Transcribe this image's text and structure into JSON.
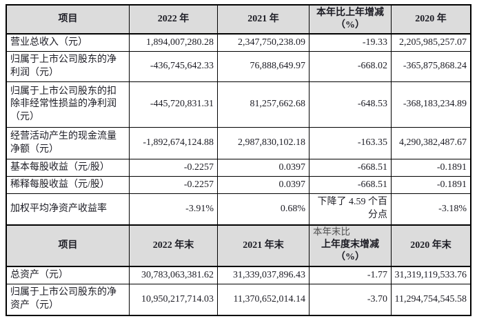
{
  "section1": {
    "headers": {
      "item": "项目",
      "y2022": "2022 年",
      "y2021": "2021 年",
      "change": "本年比上年增减\n（%）",
      "y2020": "2020 年"
    },
    "rows": [
      {
        "label": "营业总收入（元）",
        "y2022": "1,894,007,280.28",
        "y2021": "2,347,750,238.09",
        "change": "-19.33",
        "y2020": "2,205,985,257.07"
      },
      {
        "label": "归属于上市公司股东的净利润（元）",
        "y2022": "-436,745,642.33",
        "y2021": "76,888,649.97",
        "change": "-668.02",
        "y2020": "-365,875,868.24"
      },
      {
        "label": "归属于上市公司股东的扣除非经常性损益的净利润（元）",
        "y2022": "-445,720,831.31",
        "y2021": "81,257,662.68",
        "change": "-648.53",
        "y2020": "-368,183,234.89"
      },
      {
        "label": "经营活动产生的现金流量净额（元）",
        "y2022": "-1,892,674,124.88",
        "y2021": "2,987,830,102.18",
        "change": "-163.35",
        "y2020": "4,290,382,487.67"
      },
      {
        "label": "基本每股收益（元/股）",
        "y2022": "-0.2257",
        "y2021": "0.0397",
        "change": "-668.51",
        "y2020": "-0.1891"
      },
      {
        "label": "稀释每股收益（元/股）",
        "y2022": "-0.2257",
        "y2021": "0.0397",
        "change": "-668.51",
        "y2020": "-0.1891"
      },
      {
        "label": "加权平均净资产收益率",
        "y2022": "-3.91%",
        "y2021": "0.68%",
        "change": "下降了 4.59 个百分点",
        "y2020": "-3.18%"
      }
    ]
  },
  "section2": {
    "headers": {
      "item": "项目",
      "y2022": "2022 年末",
      "y2021": "2021 年末",
      "change_prefix": "本年末比",
      "change": "上年度末增减\n（%）",
      "y2020": "2020 年末"
    },
    "rows": [
      {
        "label": "总资产（元）",
        "y2022": "30,783,063,381.62",
        "y2021": "31,339,037,896.43",
        "change": "-1.77",
        "y2020": "31,319,119,533.76"
      },
      {
        "label": "归属于上市公司股东的净资产（元）",
        "y2022": "10,950,217,714.03",
        "y2021": "11,370,652,014.14",
        "change": "-3.70",
        "y2020": "11,294,754,545.58"
      }
    ]
  },
  "colors": {
    "header_bg": "#dcdcdc",
    "border": "#000000",
    "text": "#1c1c24"
  }
}
